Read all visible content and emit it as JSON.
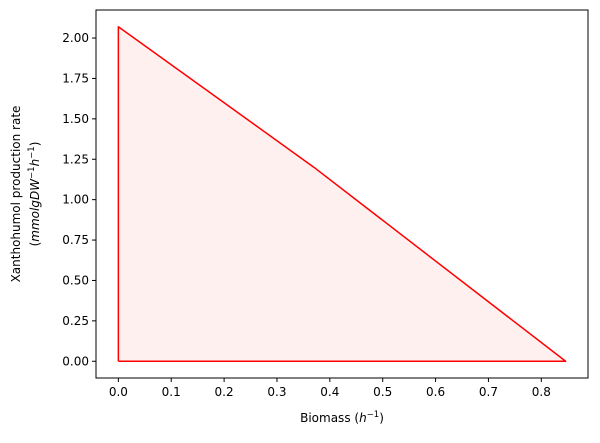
{
  "chart_data": {
    "type": "area",
    "title": "",
    "xlabel_main": "Biomass ",
    "xlabel_unit_base": "h",
    "xlabel_unit_exp": "−1",
    "ylabel_line1": "Xanthohumol production rate",
    "ylabel_line2_parts": [
      "(",
      "mmolgDW",
      "−1",
      "h",
      "−1",
      ")"
    ],
    "xlim": [
      -0.0423,
      0.8883
    ],
    "ylim": [
      -0.1035,
      2.1735
    ],
    "xticks": [
      0.0,
      0.1,
      0.2,
      0.3,
      0.4,
      0.5,
      0.6,
      0.7,
      0.8
    ],
    "xtick_labels": [
      "0.0",
      "0.1",
      "0.2",
      "0.3",
      "0.4",
      "0.5",
      "0.6",
      "0.7",
      "0.8"
    ],
    "yticks": [
      0.0,
      0.25,
      0.5,
      0.75,
      1.0,
      1.25,
      1.5,
      1.75,
      2.0
    ],
    "ytick_labels": [
      "0.00",
      "0.25",
      "0.50",
      "0.75",
      "1.00",
      "1.25",
      "1.50",
      "1.75",
      "2.00"
    ],
    "grid": false,
    "series": [
      {
        "x": [
          0.0,
          0.0,
          0.37,
          0.846,
          0.0
        ],
        "y": [
          0.0,
          2.07,
          1.2,
          0.0,
          0.0
        ]
      }
    ],
    "line_color": "#ff0000",
    "fill_color": "#ff0000",
    "fill_alpha": 0.06
  }
}
